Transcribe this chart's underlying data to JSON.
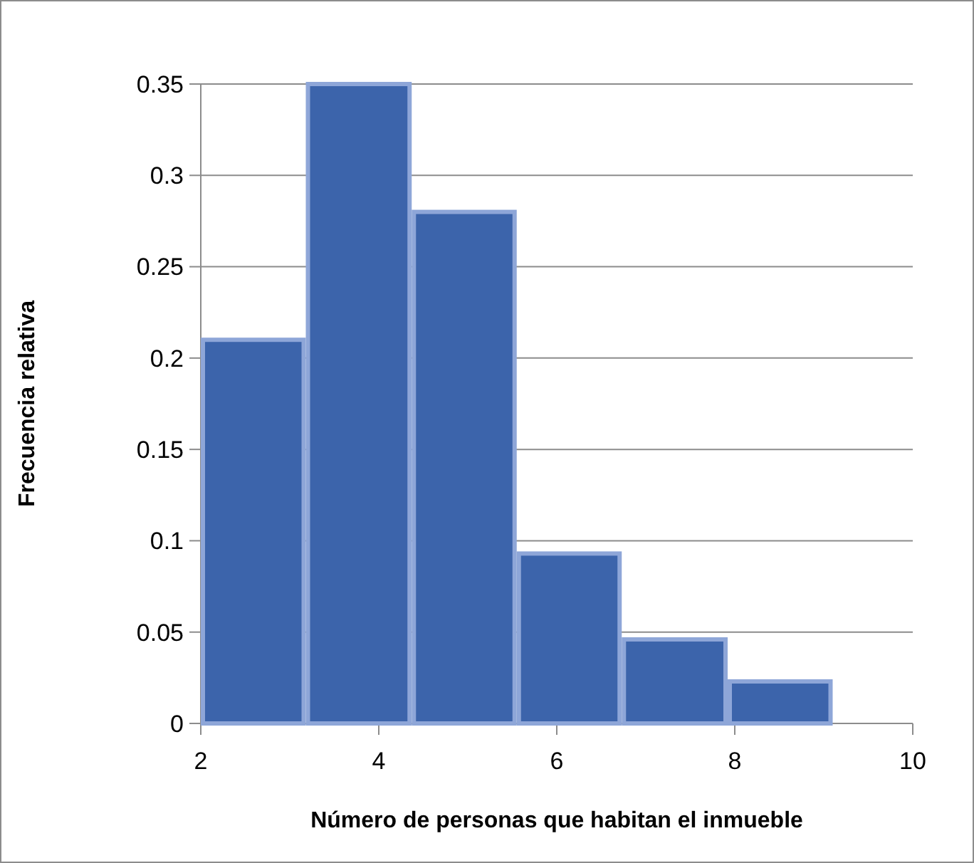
{
  "chart_data": {
    "type": "histogram",
    "xlabel": "Número de personas que habitan el inmueble",
    "ylabel": "Frecuencia relativa",
    "bins": [
      2,
      3.18,
      4.37,
      5.55,
      6.73,
      7.92,
      9.1
    ],
    "values": [
      0.21,
      0.35,
      0.28,
      0.093,
      0.046,
      0.023
    ],
    "color": "#3c64ab",
    "xlim": [
      2,
      10
    ],
    "xticks": [
      2,
      4,
      6,
      8,
      10
    ],
    "ylim": [
      0,
      0.35
    ],
    "yticks": [
      0,
      0.05,
      0.1,
      0.15,
      0.2,
      0.25,
      0.3,
      0.35
    ],
    "grid": "y"
  }
}
